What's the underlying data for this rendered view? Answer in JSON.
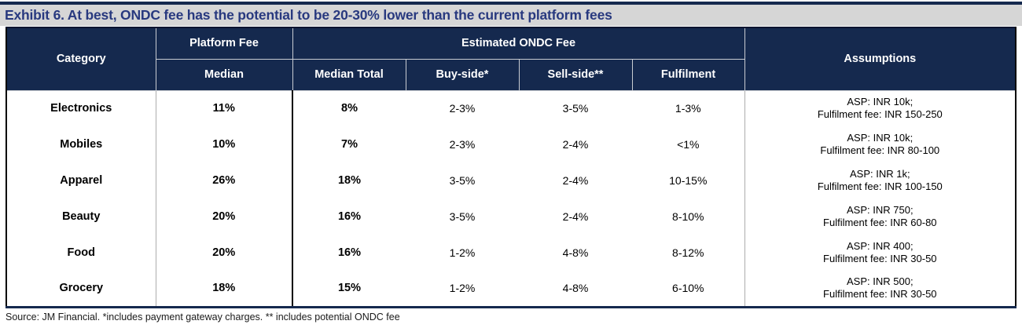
{
  "exhibit": {
    "title": "Exhibit 6. At best, ONDC fee has the potential to be 20-30% lower than the current platform fees",
    "source": "Source: JM Financial. *includes payment gateway charges. ** includes potential ONDC fee"
  },
  "colors": {
    "header_navy": "#15294E",
    "title_text_navy": "#28397F",
    "title_bar_gray": "#D6D6D6",
    "separator_gray": "#ADADAD"
  },
  "table": {
    "headers": {
      "category": "Category",
      "platform_fee_group": "Platform Fee",
      "ondc_fee_group": "Estimated ONDC Fee",
      "assumptions": "Assumptions",
      "median": "Median",
      "median_total": "Median Total",
      "buy_side": "Buy-side*",
      "sell_side": "Sell-side**",
      "fulfilment": "Fulfilment"
    },
    "rows": [
      {
        "category": "Electronics",
        "platform_median": "11%",
        "ondc_median_total": "8%",
        "buy_side": "2-3%",
        "sell_side": "3-5%",
        "fulfilment": "1-3%",
        "assumption_asp": "ASP: INR 10k;",
        "assumption_fulfilment": "Fulfilment fee: INR 150-250"
      },
      {
        "category": "Mobiles",
        "platform_median": "10%",
        "ondc_median_total": "7%",
        "buy_side": "2-3%",
        "sell_side": "2-4%",
        "fulfilment": "<1%",
        "assumption_asp": "ASP: INR 10k;",
        "assumption_fulfilment": "Fulfilment fee: INR 80-100"
      },
      {
        "category": "Apparel",
        "platform_median": "26%",
        "ondc_median_total": "18%",
        "buy_side": "3-5%",
        "sell_side": "2-4%",
        "fulfilment": "10-15%",
        "assumption_asp": "ASP: INR 1k;",
        "assumption_fulfilment": "Fulfilment fee: INR 100-150"
      },
      {
        "category": "Beauty",
        "platform_median": "20%",
        "ondc_median_total": "16%",
        "buy_side": "3-5%",
        "sell_side": "2-4%",
        "fulfilment": "8-10%",
        "assumption_asp": "ASP: INR 750;",
        "assumption_fulfilment": "Fulfilment fee: INR 60-80"
      },
      {
        "category": "Food",
        "platform_median": "20%",
        "ondc_median_total": "16%",
        "buy_side": "1-2%",
        "sell_side": "4-8%",
        "fulfilment": "8-12%",
        "assumption_asp": "ASP: INR 400;",
        "assumption_fulfilment": "Fulfilment fee: INR 30-50"
      },
      {
        "category": "Grocery",
        "platform_median": "18%",
        "ondc_median_total": "15%",
        "buy_side": "1-2%",
        "sell_side": "4-8%",
        "fulfilment": "6-10%",
        "assumption_asp": "ASP: INR 500;",
        "assumption_fulfilment": "Fulfilment fee: INR 30-50"
      }
    ]
  }
}
